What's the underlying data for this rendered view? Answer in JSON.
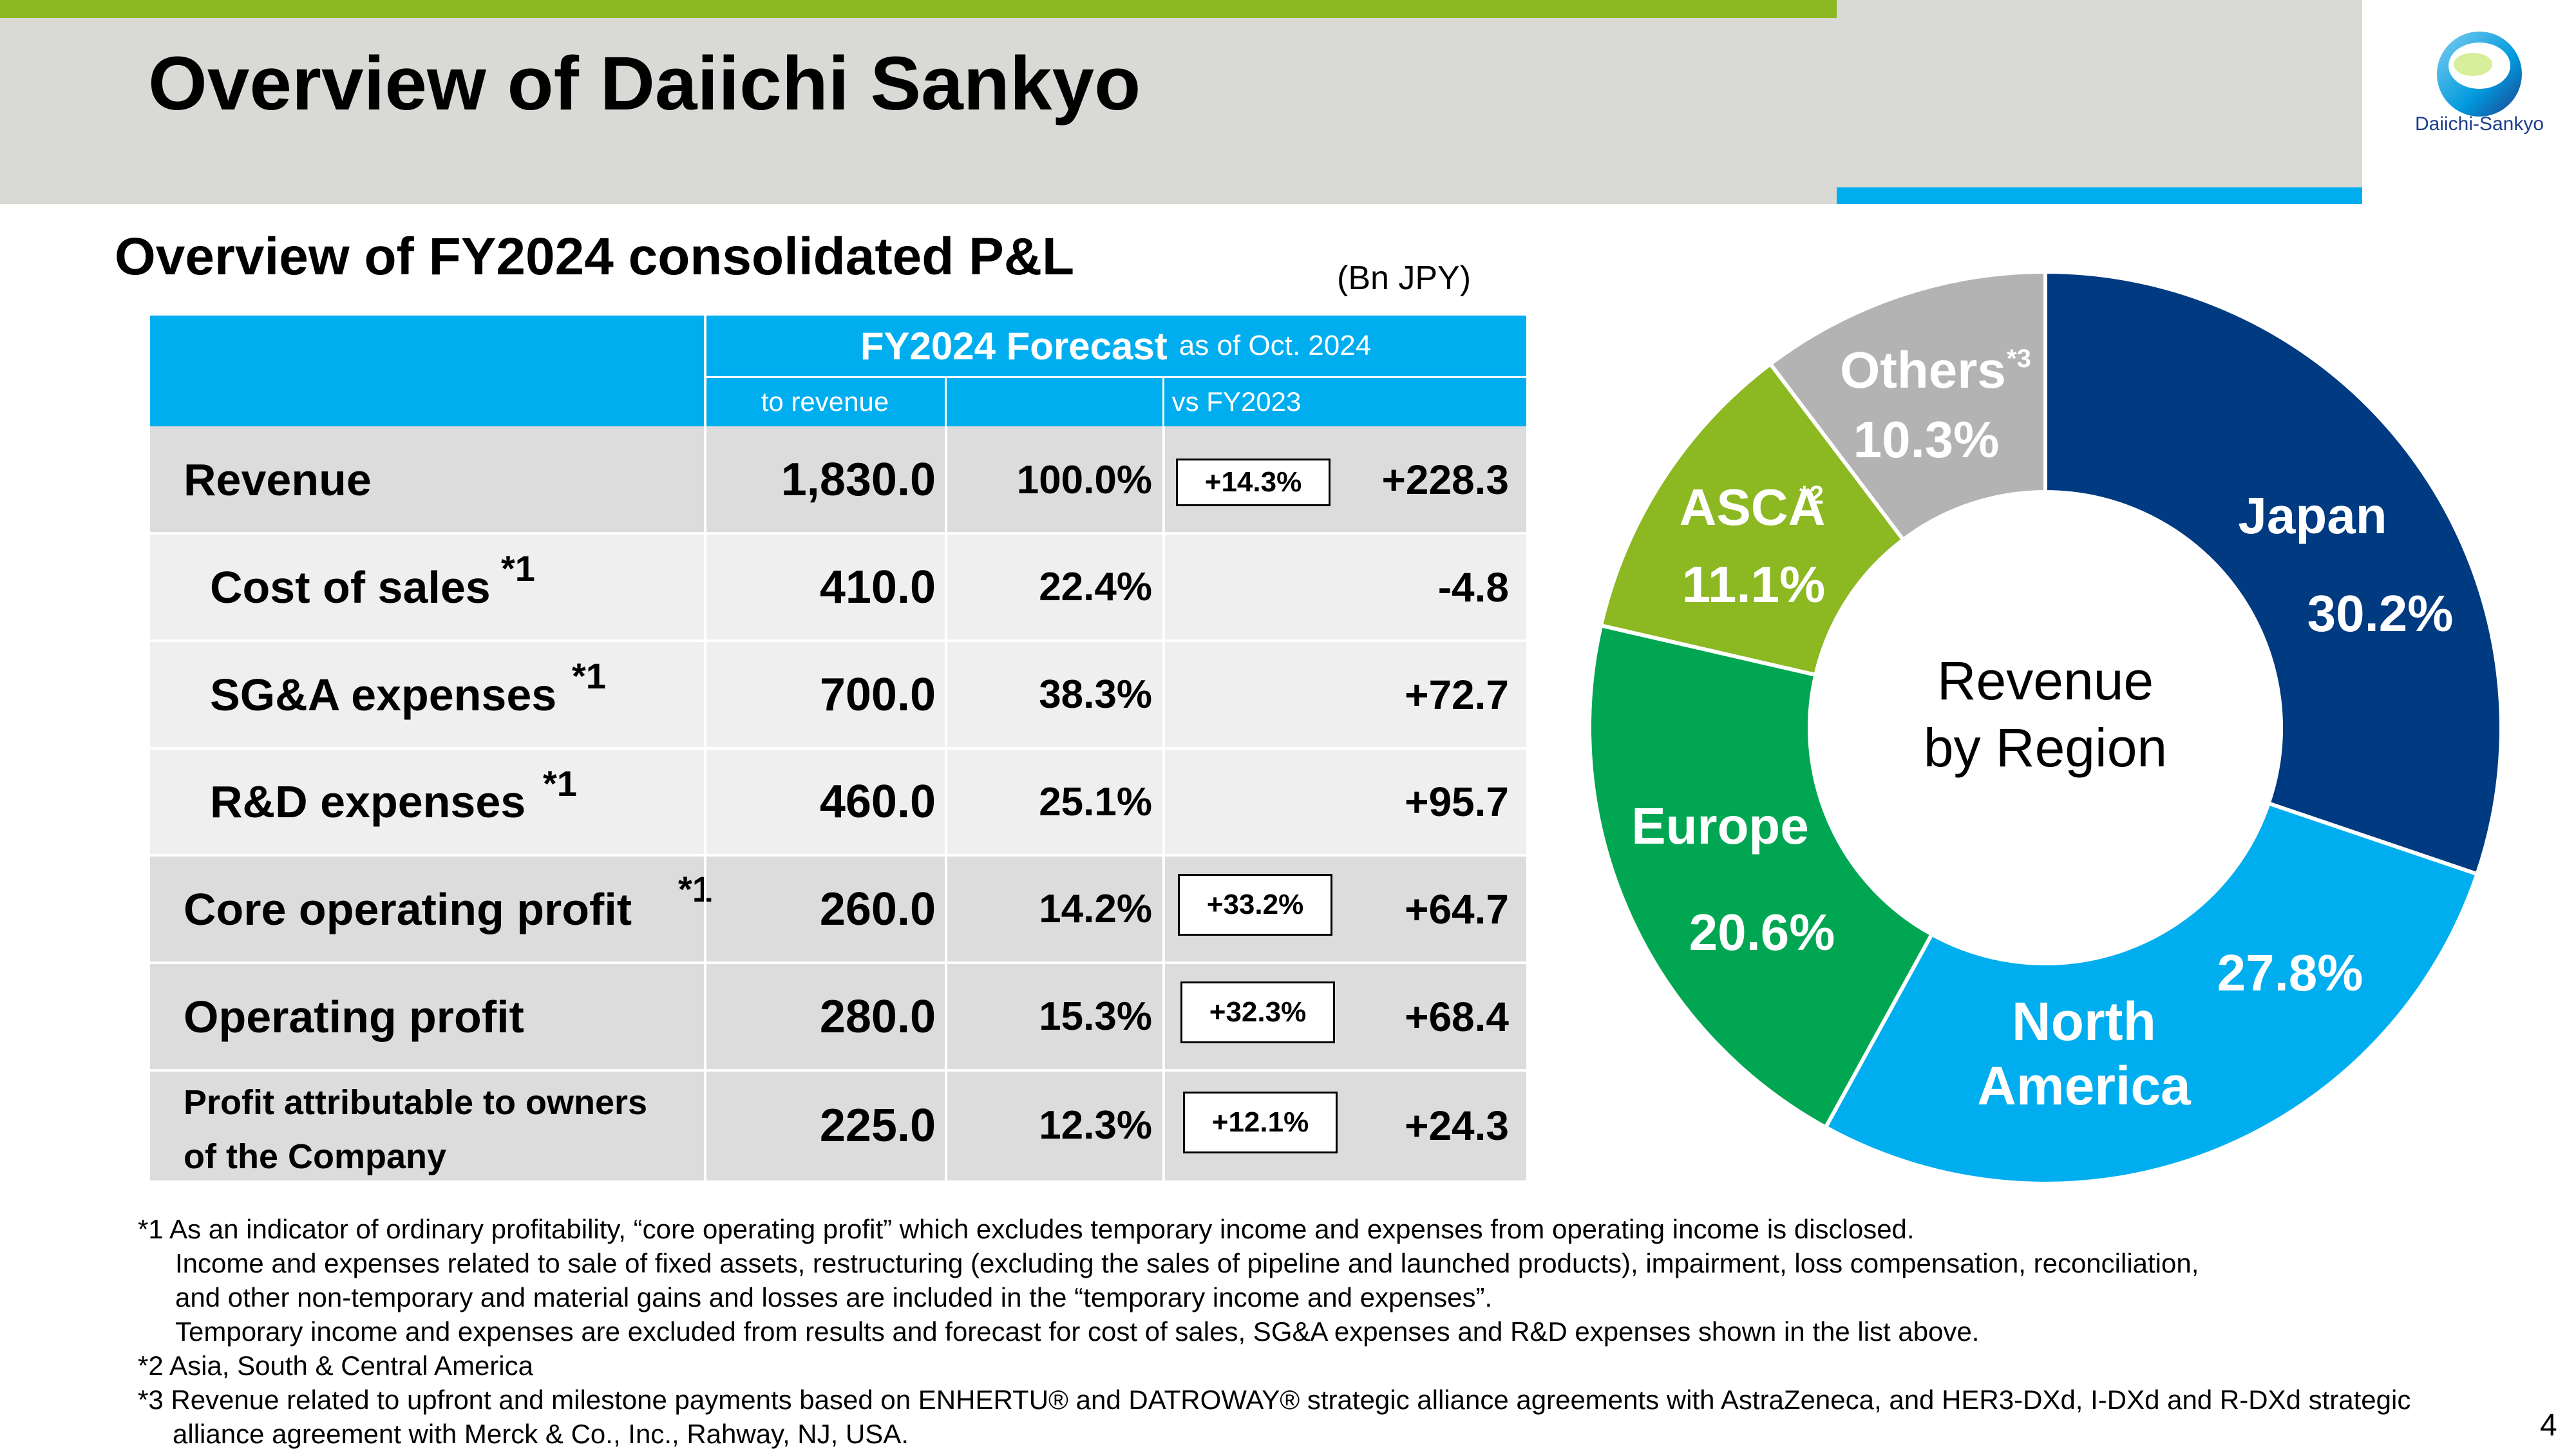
{
  "header": {
    "title": "Overview of Daiichi Sankyo",
    "logo_text": "Daiichi-Sankyo"
  },
  "section": {
    "title": "Overview of FY2024 consolidated P&L",
    "unit": "(Bn JPY)"
  },
  "table": {
    "forecast_label": "FY2024 Forecast",
    "forecast_suffix": "as of Oct. 2024",
    "col_to_revenue": "to revenue",
    "col_vs_fy2023": "vs FY2023",
    "rows": [
      {
        "label": "Revenue",
        "value": "1,830.0",
        "to_revenue": "100.0%",
        "pct": "+14.3%",
        "diff": "+228.3",
        "footnote": ""
      },
      {
        "label": "Cost of sales",
        "value": "410.0",
        "to_revenue": "22.4%",
        "pct": "",
        "diff": "-4.8",
        "footnote": "*1"
      },
      {
        "label": "SG&A expenses",
        "value": "700.0",
        "to_revenue": "38.3%",
        "pct": "",
        "diff": "+72.7",
        "footnote": "*1"
      },
      {
        "label": "R&D expenses",
        "value": "460.0",
        "to_revenue": "25.1%",
        "pct": "",
        "diff": "+95.7",
        "footnote": "*1"
      },
      {
        "label": "Core operating profit",
        "value": "260.0",
        "to_revenue": "14.2%",
        "pct": "+33.2%",
        "diff": "+64.7",
        "footnote": "*1"
      },
      {
        "label": "Operating profit",
        "value": "280.0",
        "to_revenue": "15.3%",
        "pct": "+32.3%",
        "diff": "+68.4",
        "footnote": ""
      },
      {
        "label_line1": "Profit attributable to owners",
        "label_line2": "of the Company",
        "value": "225.0",
        "to_revenue": "12.3%",
        "pct": "+12.1%",
        "diff": "+24.3",
        "footnote": ""
      }
    ]
  },
  "donut": {
    "center_line1": "Revenue",
    "center_line2": "by Region",
    "segments": [
      {
        "name": "Japan",
        "name2": "",
        "sup": "",
        "value": 30.2,
        "label": "30.2%",
        "color": "#003a80"
      },
      {
        "name": "North",
        "name2": "America",
        "sup": "",
        "value": 27.8,
        "label": "27.8%",
        "color": "#00aeef"
      },
      {
        "name": "Europe",
        "name2": "",
        "sup": "",
        "value": 20.6,
        "label": "20.6%",
        "color": "#00a651"
      },
      {
        "name": "ASCA",
        "name2": "",
        "sup": "*2",
        "value": 11.1,
        "label": "11.1%",
        "color": "#8cb822"
      },
      {
        "name": "Others",
        "name2": "",
        "sup": "*3",
        "value": 10.3,
        "label": "10.3%",
        "color": "#b3b3b3"
      }
    ]
  },
  "footnotes": {
    "n1_line1": "*1 As an indicator of ordinary profitability, “core operating profit” which excludes temporary income and expenses from operating income is disclosed.",
    "n1_line2": "Income and expenses related to sale of fixed assets, restructuring (excluding the sales of pipeline and launched products), impairment, loss compensation, reconciliation,",
    "n1_line3": "and other non-temporary and material gains and losses are included in the “temporary income and expenses”.",
    "n1_line4": "Temporary income and expenses are excluded from results and forecast for cost of sales, SG&A expenses and R&D expenses shown in the list above.",
    "n2": "*2 Asia, South & Central America",
    "n3_line1": "*3 Revenue related to upfront and milestone payments based on ENHERTU® and DATROWAY® strategic alliance agreements with AstraZeneca, and HER3-DXd, I-DXd and R-DXd strategic",
    "n3_line2": "alliance agreement with Merck & Co., Inc., Rahway, NJ, USA."
  },
  "page_number": "4"
}
